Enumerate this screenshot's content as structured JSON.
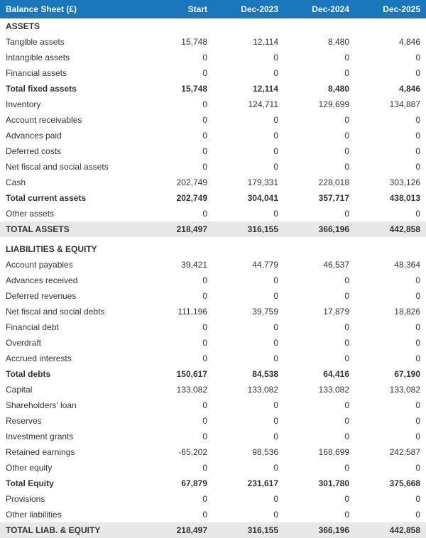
{
  "header": {
    "title": "Balance Sheet (£)",
    "columns": [
      "Start",
      "Dec-2023",
      "Dec-2024",
      "Dec-2025"
    ]
  },
  "rows": [
    {
      "type": "section",
      "label": "ASSETS"
    },
    {
      "type": "data",
      "label": "Tangible assets",
      "values": [
        "15,748",
        "12,114",
        "8,480",
        "4,846"
      ]
    },
    {
      "type": "data",
      "label": "Intangible assets",
      "values": [
        "0",
        "0",
        "0",
        "0"
      ]
    },
    {
      "type": "data",
      "label": "Financial assets",
      "values": [
        "0",
        "0",
        "0",
        "0"
      ]
    },
    {
      "type": "bold",
      "label": "Total fixed assets",
      "values": [
        "15,748",
        "12,114",
        "8,480",
        "4,846"
      ]
    },
    {
      "type": "data",
      "label": "Inventory",
      "values": [
        "0",
        "124,711",
        "129,699",
        "134,887"
      ]
    },
    {
      "type": "data",
      "label": "Account receivables",
      "values": [
        "0",
        "0",
        "0",
        "0"
      ]
    },
    {
      "type": "data",
      "label": "Advances paid",
      "values": [
        "0",
        "0",
        "0",
        "0"
      ]
    },
    {
      "type": "data",
      "label": "Deferred costs",
      "values": [
        "0",
        "0",
        "0",
        "0"
      ]
    },
    {
      "type": "data",
      "label": "Net fiscal and social assets",
      "values": [
        "0",
        "0",
        "0",
        "0"
      ]
    },
    {
      "type": "data",
      "label": "Cash",
      "values": [
        "202,749",
        "179,331",
        "228,018",
        "303,126"
      ]
    },
    {
      "type": "bold",
      "label": "Total current assets",
      "values": [
        "202,749",
        "304,041",
        "357,717",
        "438,013"
      ]
    },
    {
      "type": "data",
      "label": "Other assets",
      "values": [
        "0",
        "0",
        "0",
        "0"
      ]
    },
    {
      "type": "total",
      "label": "TOTAL ASSETS",
      "values": [
        "218,497",
        "316,155",
        "366,196",
        "442,858"
      ]
    },
    {
      "type": "section-pad",
      "label": "LIABILITIES & EQUITY"
    },
    {
      "type": "data",
      "label": "Account payables",
      "values": [
        "39,421",
        "44,779",
        "46,537",
        "48,364"
      ]
    },
    {
      "type": "data",
      "label": "Advances received",
      "values": [
        "0",
        "0",
        "0",
        "0"
      ]
    },
    {
      "type": "data",
      "label": "Deferred revenues",
      "values": [
        "0",
        "0",
        "0",
        "0"
      ]
    },
    {
      "type": "data",
      "label": "Net fiscal and social debts",
      "values": [
        "111,196",
        "39,759",
        "17,879",
        "18,826"
      ]
    },
    {
      "type": "data",
      "label": "Financial debt",
      "values": [
        "0",
        "0",
        "0",
        "0"
      ]
    },
    {
      "type": "data",
      "label": "Overdraft",
      "values": [
        "0",
        "0",
        "0",
        "0"
      ]
    },
    {
      "type": "data",
      "label": "Accrued interests",
      "values": [
        "0",
        "0",
        "0",
        "0"
      ]
    },
    {
      "type": "bold",
      "label": "Total debts",
      "values": [
        "150,617",
        "84,538",
        "64,416",
        "67,190"
      ]
    },
    {
      "type": "data",
      "label": "Capital",
      "values": [
        "133,082",
        "133,082",
        "133,082",
        "133,082"
      ]
    },
    {
      "type": "data",
      "label": "Shareholders' loan",
      "values": [
        "0",
        "0",
        "0",
        "0"
      ]
    },
    {
      "type": "data",
      "label": "Reserves",
      "values": [
        "0",
        "0",
        "0",
        "0"
      ]
    },
    {
      "type": "data",
      "label": "Investment grants",
      "values": [
        "0",
        "0",
        "0",
        "0"
      ]
    },
    {
      "type": "data",
      "label": "Retained earnings",
      "values": [
        "-65,202",
        "98,536",
        "168,699",
        "242,587"
      ]
    },
    {
      "type": "data",
      "label": "Other equity",
      "values": [
        "0",
        "0",
        "0",
        "0"
      ]
    },
    {
      "type": "bold",
      "label": "Total Equity",
      "values": [
        "67,879",
        "231,617",
        "301,780",
        "375,668"
      ]
    },
    {
      "type": "data",
      "label": "Provisions",
      "values": [
        "0",
        "0",
        "0",
        "0"
      ]
    },
    {
      "type": "data",
      "label": "Other liabilities",
      "values": [
        "0",
        "0",
        "0",
        "0"
      ]
    },
    {
      "type": "total",
      "label": "TOTAL LIAB. & EQUITY",
      "values": [
        "218,497",
        "316,155",
        "366,196",
        "442,858"
      ]
    }
  ],
  "colors": {
    "header_bg": "#1b77bb",
    "header_text": "#ffffff",
    "shaded_bg": "#e8e8e8",
    "text": "#333333"
  }
}
